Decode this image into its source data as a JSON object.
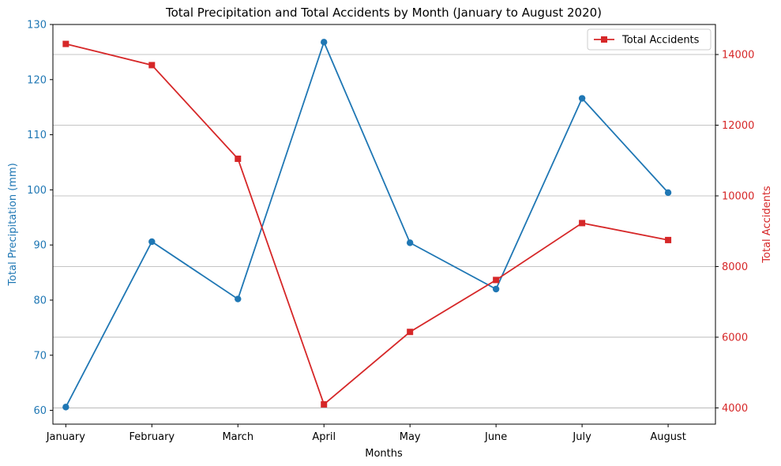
{
  "chart_data": {
    "type": "line",
    "title": "Total Precipitation and Total Accidents by Month (January to August 2020)",
    "xlabel": "Months",
    "categories": [
      "January",
      "February",
      "March",
      "April",
      "May",
      "June",
      "July",
      "August"
    ],
    "left_axis": {
      "label": "Total Precipitation (mm)",
      "color": "#1f77b4",
      "ylim": [
        57.5,
        130
      ],
      "ticks": [
        60,
        70,
        80,
        90,
        100,
        110,
        120,
        130
      ]
    },
    "right_axis": {
      "label": "Total Accidents",
      "color": "#d62728",
      "ylim": [
        3540,
        14850
      ],
      "ticks": [
        4000,
        6000,
        8000,
        10000,
        12000,
        14000
      ],
      "grid": true
    },
    "series": [
      {
        "axis": "left",
        "color": "#1f77b4",
        "marker": "circle",
        "values": [
          60.6,
          90.6,
          80.2,
          126.8,
          90.4,
          82.0,
          116.6,
          99.5
        ]
      },
      {
        "name": "Total Accidents",
        "axis": "right",
        "color": "#d62728",
        "marker": "square",
        "values": [
          14300,
          13700,
          11050,
          4100,
          6150,
          7620,
          9230,
          8750
        ]
      }
    ],
    "legend": {
      "placement": "top-right"
    }
  }
}
